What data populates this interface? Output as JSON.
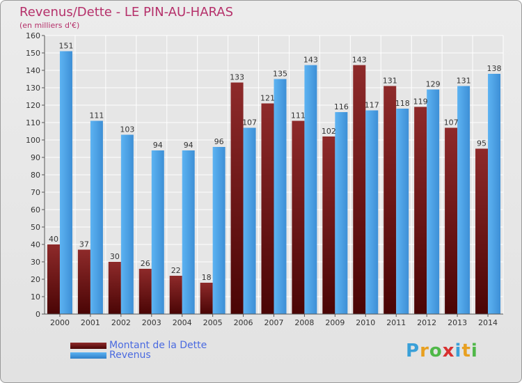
{
  "header": {
    "title": "Revenus/Dette - LE PIN-AU-HARAS",
    "subtitle": "(en milliers d'€)"
  },
  "legend": {
    "debt_label": "Montant de la Dette",
    "revenue_label": "Revenus"
  },
  "logo": {
    "letters": [
      "P",
      "r",
      "o",
      "x",
      "i",
      "t",
      "i"
    ],
    "colors": [
      "#3aa0d8",
      "#e8a020",
      "#4fb848",
      "#d83030",
      "#3aa0d8",
      "#e8a020",
      "#4fb848"
    ]
  },
  "colors": {
    "debt": "#7a1e1e",
    "debt_dark": "#4a0505",
    "revenue": "#55aaee",
    "revenue_dark": "#2f7fc8",
    "title": "#b5306a"
  },
  "chart_data": {
    "type": "bar",
    "title": "Revenus/Dette - LE PIN-AU-HARAS",
    "subtitle": "(en milliers d'€)",
    "xlabel": "",
    "ylabel": "",
    "categories": [
      "2000",
      "2001",
      "2002",
      "2003",
      "2004",
      "2005",
      "2006",
      "2007",
      "2008",
      "2009",
      "2010",
      "2011",
      "2012",
      "2013",
      "2014"
    ],
    "series": [
      {
        "name": "Montant de la Dette",
        "values": [
          40,
          37,
          30,
          26,
          22,
          18,
          133,
          121,
          111,
          102,
          143,
          131,
          119,
          107,
          95
        ]
      },
      {
        "name": "Revenus",
        "values": [
          151,
          111,
          103,
          94,
          94,
          96,
          107,
          135,
          143,
          116,
          117,
          118,
          129,
          131,
          138
        ]
      }
    ],
    "ylim": [
      0,
      160
    ],
    "yticks": [
      0,
      10,
      20,
      30,
      40,
      50,
      60,
      70,
      80,
      90,
      100,
      110,
      120,
      130,
      140,
      150,
      160
    ],
    "grid": true,
    "legend_position": "bottom-left"
  }
}
